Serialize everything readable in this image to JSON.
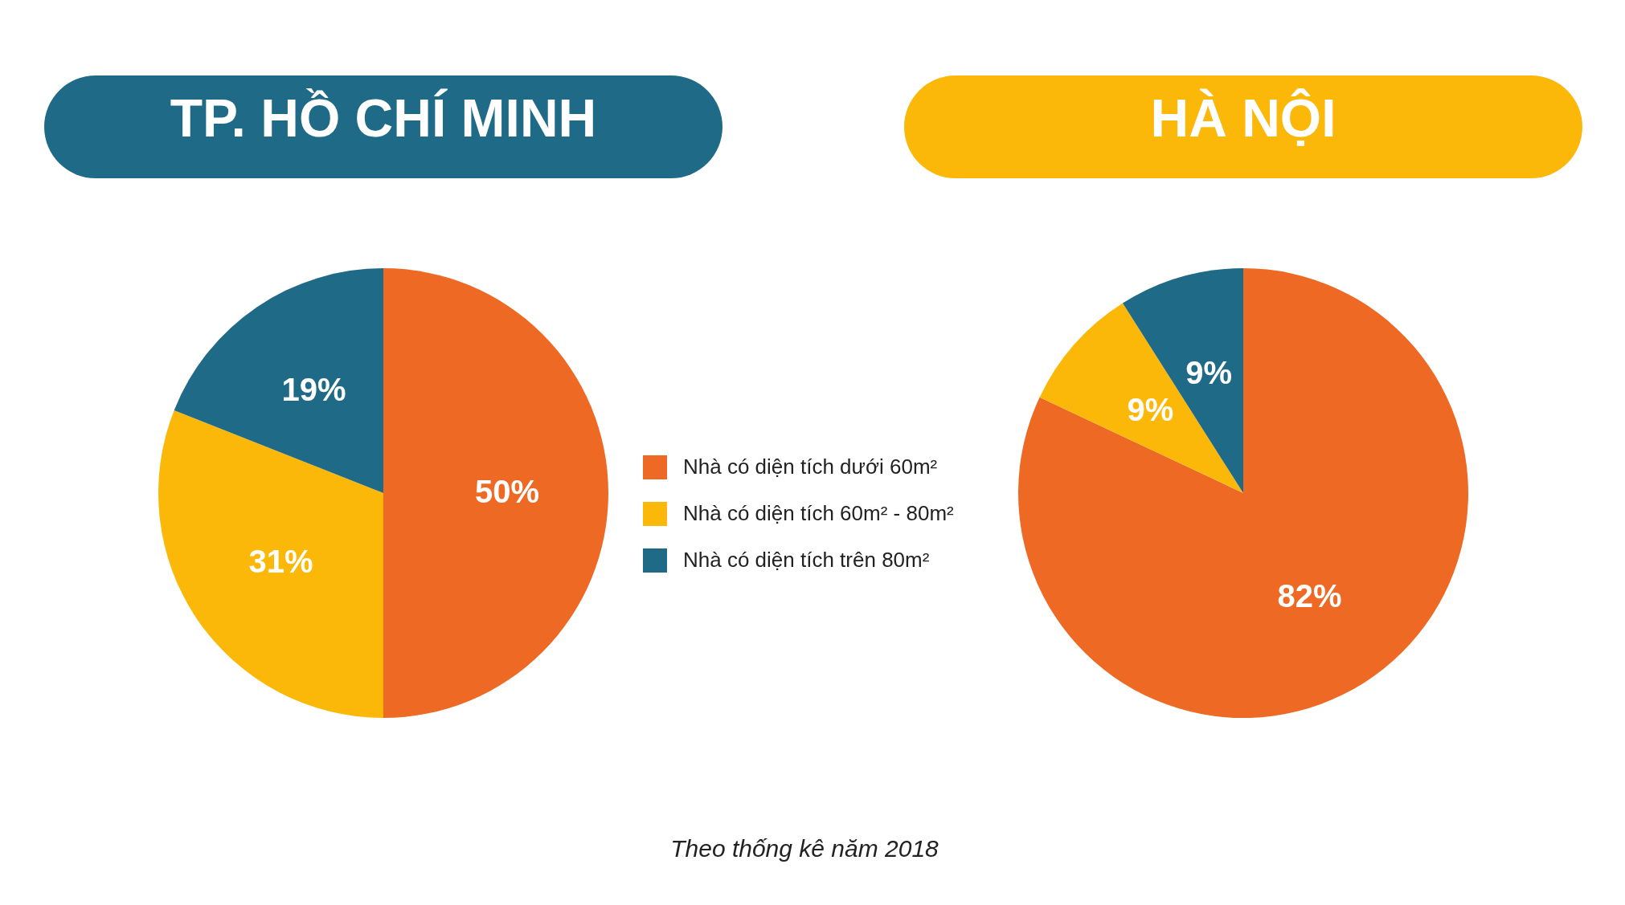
{
  "chart_data": [
    {
      "type": "pie",
      "title": "TP. HỒ CHÍ MINH",
      "categories": [
        "Nhà có diện tích dưới 60m²",
        "Nhà có diện tích 60m² - 80m²",
        "Nhà có diện tích trên 80m²"
      ],
      "values": [
        50,
        31,
        19
      ],
      "colors": [
        "#ee6a24",
        "#fbb809",
        "#1f6a87"
      ],
      "value_labels": [
        "50%",
        "31%",
        "19%"
      ],
      "legend": "right",
      "annotations": [
        "Theo thống kê năm 2018"
      ]
    },
    {
      "type": "pie",
      "title": "HÀ NỘI",
      "categories": [
        null,
        null,
        null
      ],
      "values": [
        82,
        9,
        9
      ],
      "colors": [
        "#ee6a24",
        "#fbb809",
        "#1f6a87"
      ],
      "value_labels": [
        "82%",
        "9%",
        "9%"
      ]
    }
  ]
}
